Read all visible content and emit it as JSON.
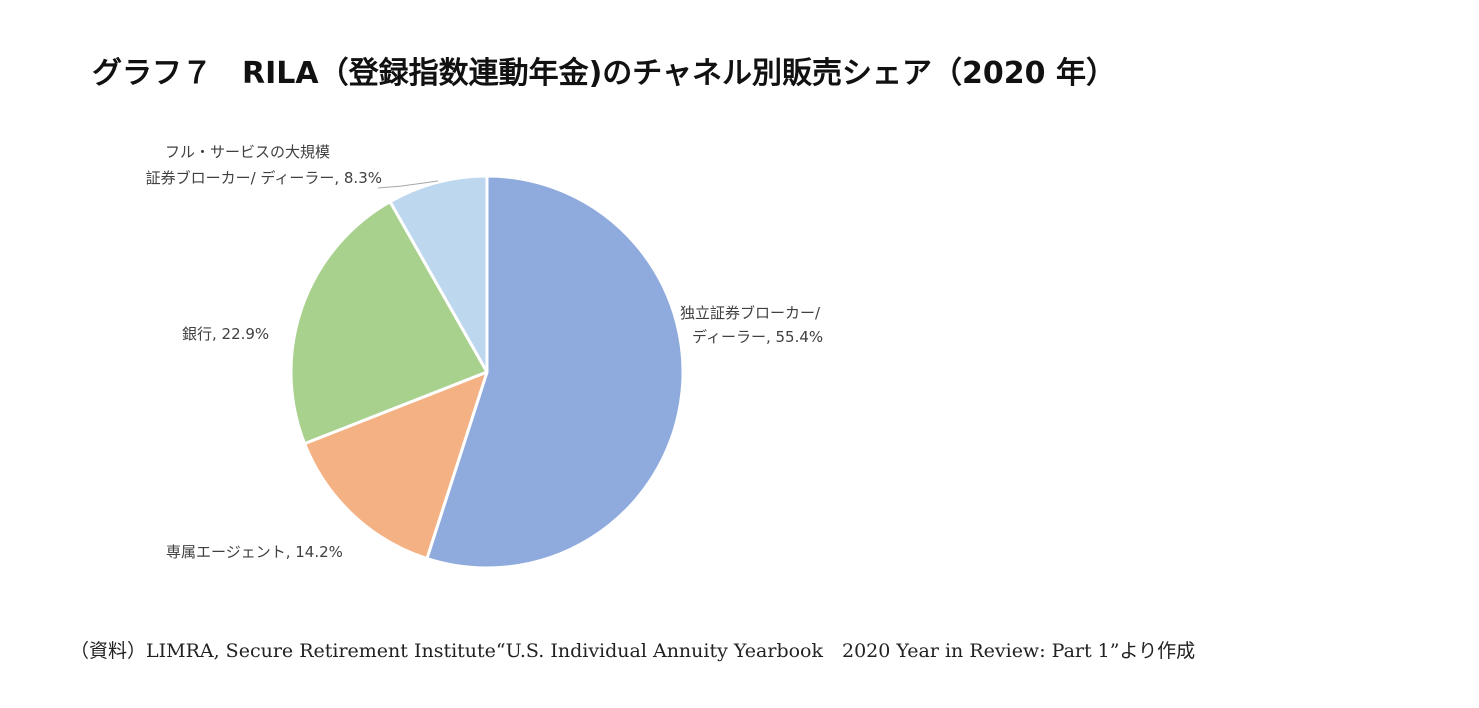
{
  "page": {
    "title": "グラフ７　RILA（登録指数連動年金)のチャネル別販売シェア（2020 年）",
    "source": "（資料）LIMRA, Secure Retirement Institute“U.S. Individual Annuity Yearbook　2020 Year in Review: Part 1”より作成"
  },
  "chart_data": {
    "type": "pie",
    "title": "",
    "start_angle_deg": 0,
    "direction": "clockwise",
    "legend": "none",
    "slices": [
      {
        "label_lines": [
          "独立証券ブローカー/",
          "ディーラー, 55.4%"
        ],
        "category": "独立証券ブローカー/ディーラー",
        "value": 55.4,
        "color": "#8FAADC"
      },
      {
        "label_lines": [
          "専属エージェント, 14.2%"
        ],
        "category": "専属エージェント",
        "value": 14.2,
        "color": "#F4B183"
      },
      {
        "label_lines": [
          "銀行, 22.9%"
        ],
        "category": "銀行",
        "value": 22.9,
        "color": "#A9D18E"
      },
      {
        "label_lines": [
          "フル・サービスの大規模",
          "証券ブローカー/ ディーラー, 8.3%"
        ],
        "category": "フル・サービスの大規模証券ブローカー/ディーラー",
        "value": 8.3,
        "color": "#BDD7EE"
      }
    ]
  }
}
